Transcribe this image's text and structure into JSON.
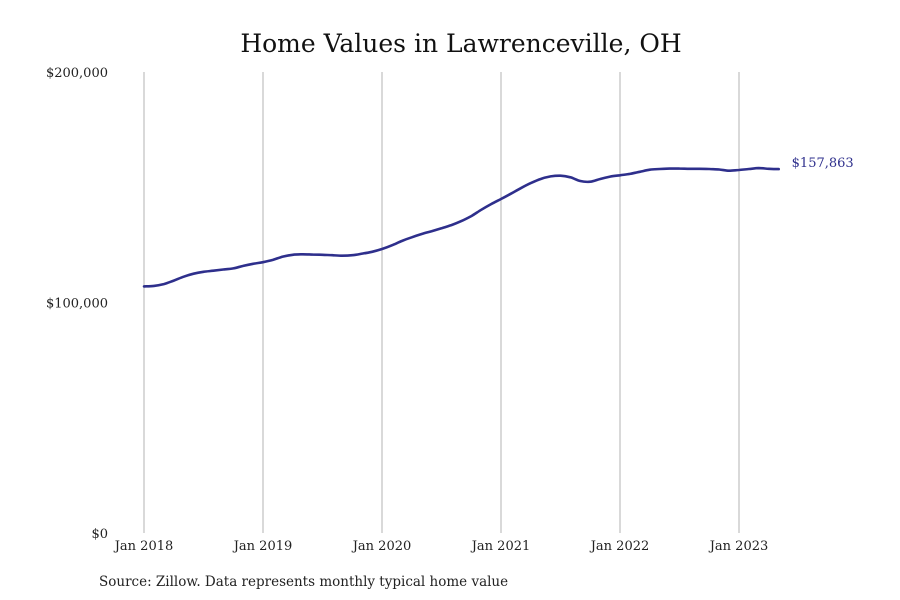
{
  "chart_data": {
    "type": "line",
    "title": "Home Values in Lawrenceville, OH",
    "xlabel": "",
    "ylabel": "",
    "ylim": [
      0,
      200000
    ],
    "yticks": [
      {
        "value": 0,
        "label": "$0"
      },
      {
        "value": 100000,
        "label": "$100,000"
      },
      {
        "value": 200000,
        "label": "$200,000"
      }
    ],
    "xticks": [
      {
        "value": "2018-01",
        "label": "Jan 2018"
      },
      {
        "value": "2019-01",
        "label": "Jan 2019"
      },
      {
        "value": "2020-01",
        "label": "Jan 2020"
      },
      {
        "value": "2021-01",
        "label": "Jan 2021"
      },
      {
        "value": "2022-01",
        "label": "Jan 2022"
      },
      {
        "value": "2023-01",
        "label": "Jan 2023"
      }
    ],
    "grid": "vertical at x ticks",
    "line_color": "#2e2f8c",
    "series": [
      {
        "x": [
          "2018-01",
          "2018-02",
          "2018-03",
          "2018-04",
          "2018-05",
          "2018-06",
          "2018-07",
          "2018-08",
          "2018-09",
          "2018-10",
          "2018-11",
          "2018-12",
          "2019-01",
          "2019-02",
          "2019-03",
          "2019-04",
          "2019-05",
          "2019-06",
          "2019-07",
          "2019-08",
          "2019-09",
          "2019-10",
          "2019-11",
          "2019-12",
          "2020-01",
          "2020-02",
          "2020-03",
          "2020-04",
          "2020-05",
          "2020-06",
          "2020-07",
          "2020-08",
          "2020-09",
          "2020-10",
          "2020-11",
          "2020-12",
          "2021-01",
          "2021-02",
          "2021-03",
          "2021-04",
          "2021-05",
          "2021-06",
          "2021-07",
          "2021-08",
          "2021-09",
          "2021-10",
          "2021-11",
          "2021-12",
          "2022-01",
          "2022-02",
          "2022-03",
          "2022-04",
          "2022-05",
          "2022-06",
          "2022-07",
          "2022-08",
          "2022-09",
          "2022-10",
          "2022-11",
          "2022-12",
          "2023-01",
          "2023-02",
          "2023-03",
          "2023-04",
          "2023-05"
        ],
        "values": [
          107000,
          107200,
          108000,
          109500,
          111200,
          112500,
          113300,
          113800,
          114300,
          114800,
          115900,
          116800,
          117500,
          118500,
          119900,
          120700,
          120900,
          120800,
          120700,
          120500,
          120300,
          120500,
          121200,
          122000,
          123200,
          124800,
          126700,
          128300,
          129700,
          130900,
          132200,
          133600,
          135300,
          137500,
          140200,
          142700,
          144900,
          147200,
          149600,
          151800,
          153600,
          154700,
          155000,
          154300,
          152700,
          152400,
          153600,
          154600,
          155200,
          155800,
          156700,
          157600,
          157900,
          158100,
          158100,
          158000,
          158000,
          157900,
          157700,
          157200,
          157500,
          157900,
          158300,
          158000,
          157863
        ]
      }
    ],
    "end_label": "$157,863"
  },
  "source_text": "Source: Zillow. Data represents monthly typical home value"
}
